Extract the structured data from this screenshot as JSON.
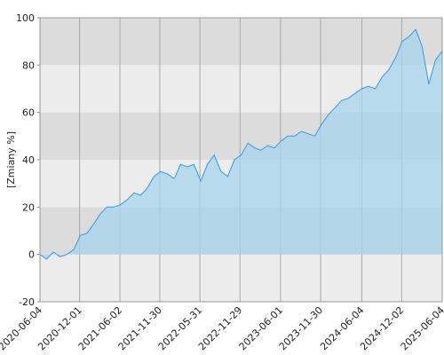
{
  "chart_data": {
    "type": "area",
    "y_label": "[Zmiany %]",
    "x": [
      "2020-06-04",
      "2020-07-04",
      "2020-08-04",
      "2020-09-04",
      "2020-10-04",
      "2020-11-04",
      "2020-12-04",
      "2021-01-04",
      "2021-02-04",
      "2021-03-04",
      "2021-04-04",
      "2021-05-04",
      "2021-06-04",
      "2021-07-04",
      "2021-08-04",
      "2021-09-04",
      "2021-10-04",
      "2021-11-04",
      "2021-12-04",
      "2022-01-04",
      "2022-02-04",
      "2022-03-04",
      "2022-04-04",
      "2022-05-04",
      "2022-06-04",
      "2022-07-04",
      "2022-08-04",
      "2022-09-04",
      "2022-10-04",
      "2022-11-04",
      "2022-12-04",
      "2023-01-04",
      "2023-02-04",
      "2023-03-04",
      "2023-04-04",
      "2023-05-04",
      "2023-06-04",
      "2023-07-04",
      "2023-08-04",
      "2023-09-04",
      "2023-10-04",
      "2023-11-04",
      "2023-12-04",
      "2024-01-04",
      "2024-02-04",
      "2024-03-04",
      "2024-04-04",
      "2024-05-04",
      "2024-06-04",
      "2024-07-04",
      "2024-08-04",
      "2024-09-04",
      "2024-10-04",
      "2024-11-04",
      "2024-12-04",
      "2025-01-04",
      "2025-02-04",
      "2025-03-04",
      "2025-04-04",
      "2025-05-04",
      "2025-06-04"
    ],
    "series": [
      {
        "name": "Zmiany",
        "color": "#3399ee",
        "fill": "#a6d6ec",
        "values": [
          0,
          -2,
          1,
          -1,
          0,
          2,
          8,
          9,
          13,
          17,
          20,
          20,
          21,
          23,
          26,
          25,
          28,
          33,
          35,
          34,
          32,
          38,
          37,
          38,
          31,
          38,
          42,
          35,
          33,
          40,
          42,
          47,
          45,
          44,
          46,
          45,
          48,
          50,
          50,
          52,
          51,
          50,
          55,
          59,
          62,
          65,
          66,
          68,
          70,
          71,
          70,
          75,
          78,
          83,
          90,
          92,
          95,
          88,
          72,
          82,
          86
        ]
      }
    ],
    "xlim": [
      "2020-06-04",
      "2025-06-04"
    ],
    "xticks": [
      "2020-06-04",
      "2020-12-01",
      "2021-06-02",
      "2021-11-30",
      "2022-05-31",
      "2022-11-29",
      "2023-06-01",
      "2023-11-30",
      "2024-06-04",
      "2024-12-02",
      "2025-06-04"
    ],
    "ylim": [
      -20,
      100
    ],
    "yticks": [
      -20,
      0,
      20,
      40,
      60,
      80,
      100
    ],
    "grid": true
  }
}
